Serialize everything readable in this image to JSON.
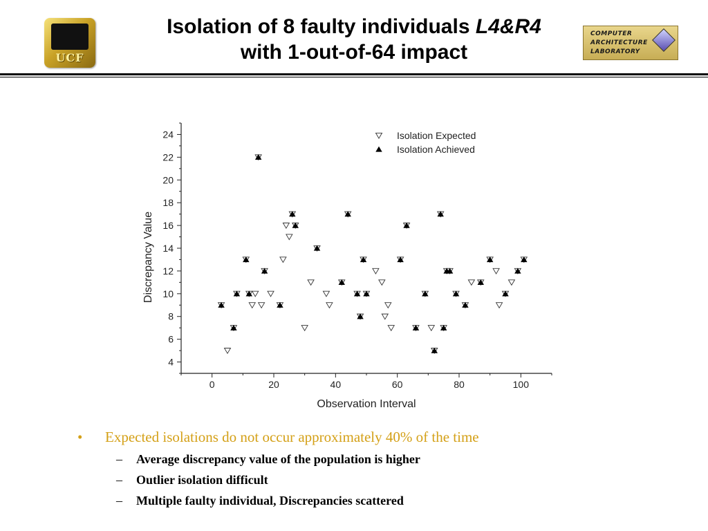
{
  "header": {
    "title_line1_a": "Isolation of 8 faulty individuals ",
    "title_line1_b": "L4&R4",
    "title_line2": "with 1-out-of-64 impact",
    "left_logo_text": "UCF",
    "right_logo_lines": [
      "COMPUTER",
      "ARCHITECTURE",
      "LABORATORY"
    ]
  },
  "chart_data": {
    "type": "scatter",
    "xlabel": "Observation Interval",
    "ylabel": "Discrepancy Value",
    "xlim": [
      -10,
      110
    ],
    "ylim": [
      3,
      25
    ],
    "xticks": [
      0,
      20,
      40,
      60,
      80,
      100
    ],
    "yticks": [
      4,
      6,
      8,
      10,
      12,
      14,
      16,
      18,
      20,
      22,
      24
    ],
    "legend_position": "top-right",
    "grid": false,
    "series": [
      {
        "name": "Isolation Expected",
        "marker": "triangle-down-open",
        "x": [
          3,
          5,
          7,
          8,
          11,
          12,
          13,
          14,
          15,
          16,
          17,
          19,
          22,
          23,
          24,
          25,
          26,
          27,
          30,
          32,
          34,
          37,
          38,
          42,
          44,
          47,
          48,
          49,
          50,
          53,
          55,
          56,
          57,
          58,
          61,
          63,
          66,
          69,
          71,
          72,
          74,
          75,
          76,
          77,
          79,
          82,
          84,
          87,
          90,
          92,
          93,
          95,
          97,
          99,
          101
        ],
        "y": [
          9,
          5,
          7,
          10,
          13,
          10,
          9,
          10,
          22,
          9,
          12,
          10,
          9,
          13,
          16,
          15,
          17,
          16,
          7,
          11,
          14,
          10,
          9,
          11,
          17,
          10,
          8,
          13,
          10,
          12,
          11,
          8,
          9,
          7,
          13,
          16,
          7,
          10,
          7,
          5,
          17,
          7,
          12,
          12,
          10,
          9,
          11,
          11,
          13,
          12,
          9,
          10,
          11,
          12,
          13
        ]
      },
      {
        "name": "Isolation Achieved",
        "marker": "triangle-up-filled",
        "x": [
          3,
          7,
          8,
          11,
          12,
          15,
          17,
          22,
          26,
          27,
          34,
          42,
          44,
          47,
          48,
          49,
          50,
          61,
          63,
          66,
          69,
          72,
          74,
          75,
          76,
          77,
          79,
          82,
          87,
          90,
          95,
          99,
          101
        ],
        "y": [
          9,
          7,
          10,
          13,
          10,
          22,
          12,
          9,
          17,
          16,
          14,
          11,
          17,
          10,
          8,
          13,
          10,
          13,
          16,
          7,
          10,
          5,
          17,
          7,
          12,
          12,
          10,
          9,
          11,
          13,
          10,
          12,
          13
        ]
      }
    ]
  },
  "bullets": {
    "main": "Expected isolations do not occur approximately 40% of the time",
    "main_marker": "•",
    "sub_marker": "–",
    "sub": [
      "Average discrepancy value of the population is higher",
      "Outlier isolation difficult",
      "Multiple faulty individual, Discrepancies scattered"
    ]
  },
  "colors": {
    "accent_bullet": "#d4a017",
    "text": "#000000"
  }
}
